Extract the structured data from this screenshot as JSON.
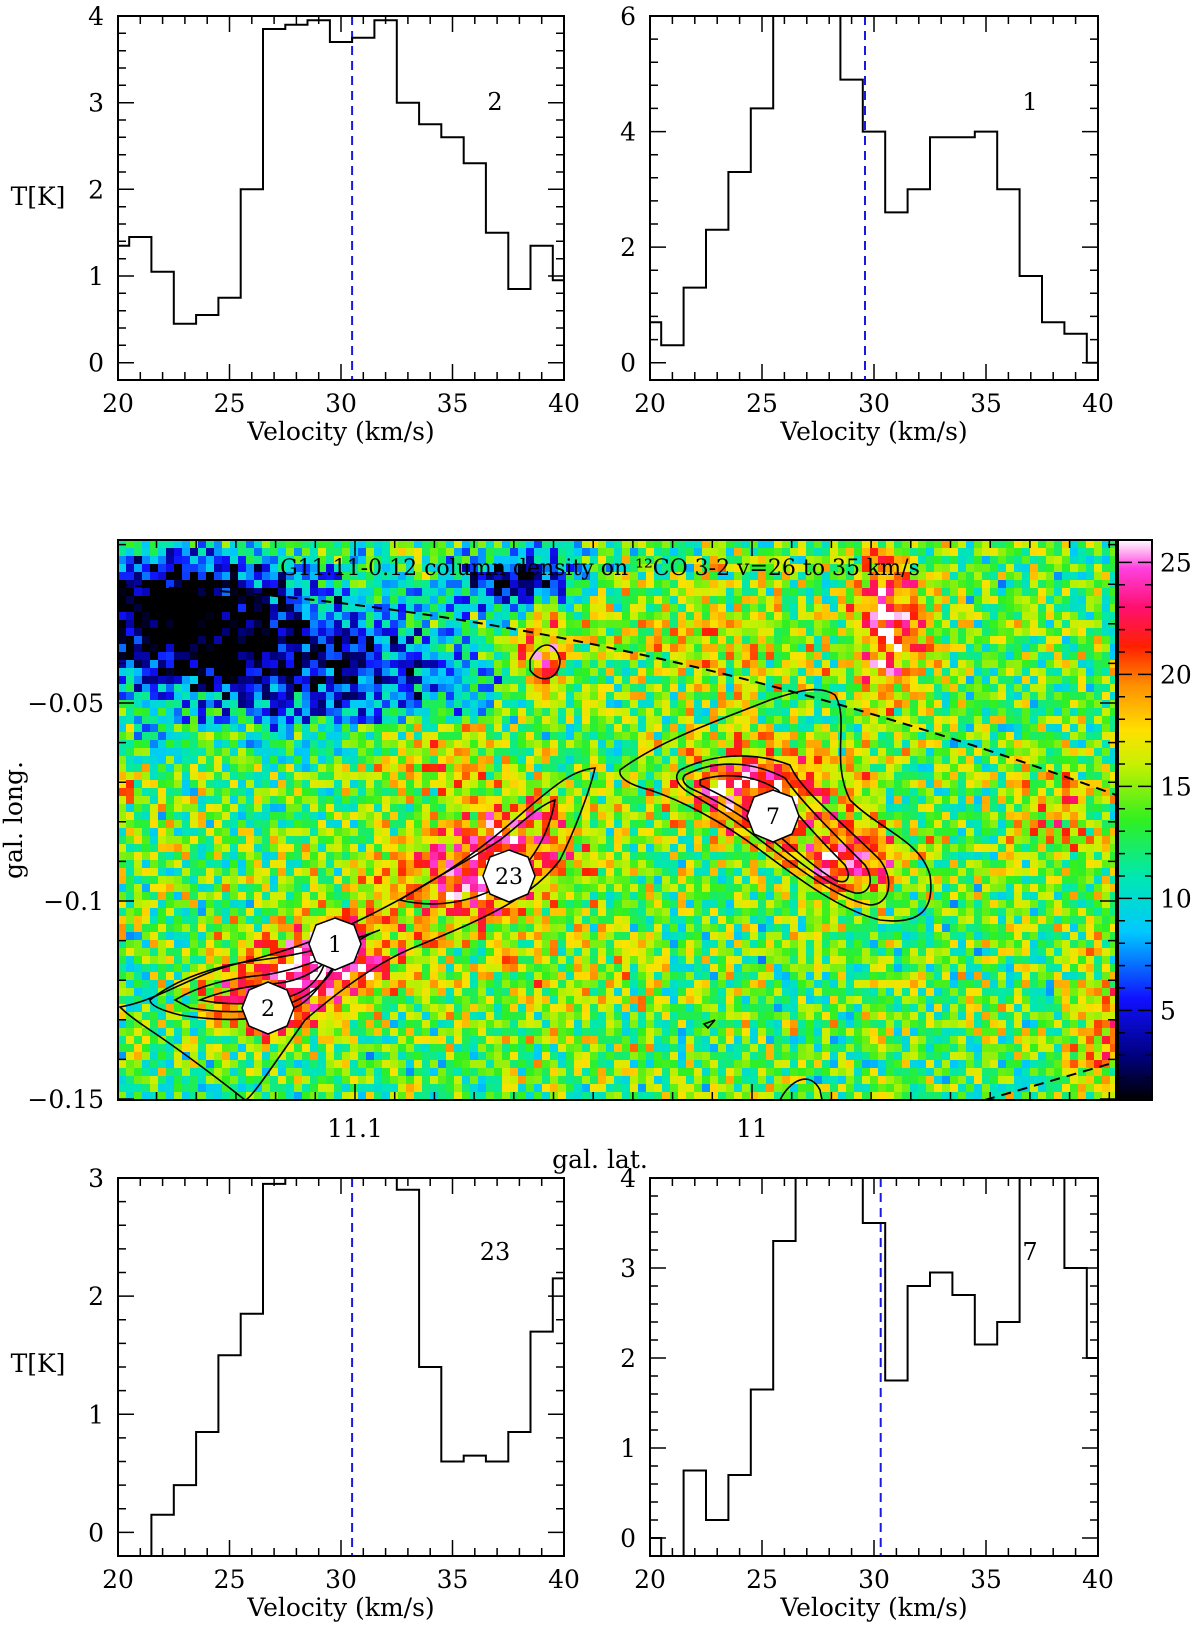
{
  "chart_data": [
    {
      "type": "line",
      "panel": "top-left",
      "label": "2",
      "xlabel": "Velocity (km/s)",
      "ylabel": "T[K]",
      "xlim": [
        20,
        40
      ],
      "ylim": [
        -0.2,
        4
      ],
      "xticks": [
        20,
        25,
        30,
        35,
        40
      ],
      "yticks": [
        0,
        1,
        2,
        3,
        4
      ],
      "vline": 30.5,
      "x": [
        20,
        20.5,
        21.5,
        22.5,
        23.5,
        24.5,
        25.5,
        26.5,
        27.5,
        28.5,
        29.5,
        30.5,
        31.5,
        32.5,
        33.5,
        34.5,
        35.5,
        36.5,
        37.5,
        38.5,
        39.5,
        40
      ],
      "y": [
        1.35,
        1.45,
        1.05,
        0.45,
        0.55,
        0.75,
        2.0,
        3.85,
        3.9,
        3.95,
        3.7,
        3.75,
        3.95,
        3.0,
        2.75,
        2.6,
        2.3,
        1.5,
        0.85,
        1.35,
        0.95,
        0.95
      ]
    },
    {
      "type": "line",
      "panel": "top-right",
      "label": "1",
      "xlabel": "Velocity (km/s)",
      "ylabel": "",
      "xlim": [
        20,
        40
      ],
      "ylim": [
        -0.3,
        6
      ],
      "xticks": [
        20,
        25,
        30,
        35,
        40
      ],
      "yticks": [
        0,
        2,
        4,
        6
      ],
      "vline": 29.6,
      "x": [
        20,
        20.5,
        21.5,
        22.5,
        23.5,
        24.5,
        25.5,
        26.5,
        27.5,
        28.5,
        29.5,
        30.5,
        31.5,
        32.5,
        33.5,
        34.5,
        35.5,
        36.5,
        37.5,
        38.5,
        39.5,
        40
      ],
      "y": [
        0.7,
        0.3,
        1.3,
        2.3,
        3.3,
        4.4,
        6.2,
        6.2,
        6.2,
        4.9,
        4.0,
        2.6,
        3.0,
        3.9,
        3.9,
        4.0,
        3.0,
        1.5,
        0.7,
        0.5,
        0.0,
        0.0
      ]
    },
    {
      "type": "heatmap",
      "panel": "middle",
      "title": "G11.11-0.12  column density on ¹²CO 3-2 v=26 to 35 km/s",
      "xlabel": "gal. lat.",
      "ylabel": "gal. long.",
      "xticks": [
        "11.1",
        "11"
      ],
      "yticks": [
        "−0.05",
        "−0.1",
        "−0.15"
      ],
      "colorbar_ticks": [
        5,
        10,
        15,
        20,
        25
      ],
      "colorbar_range": [
        1,
        26
      ],
      "markers": [
        "1",
        "2",
        "23",
        "7"
      ]
    },
    {
      "type": "line",
      "panel": "bottom-left",
      "label": "23",
      "xlabel": "Velocity (km/s)",
      "ylabel": "T[K]",
      "xlim": [
        20,
        40
      ],
      "ylim": [
        -0.2,
        3
      ],
      "xticks": [
        20,
        25,
        30,
        35,
        40
      ],
      "yticks": [
        0,
        1,
        2,
        3
      ],
      "vline": 30.5,
      "x": [
        20,
        21.5,
        22.5,
        23.5,
        24.5,
        25.5,
        26.5,
        27.5,
        28.5,
        29.5,
        30.5,
        31.5,
        32.5,
        33.5,
        34.5,
        35.5,
        36.5,
        37.5,
        38.5,
        39.5,
        40
      ],
      "y": [
        -0.3,
        0.15,
        0.4,
        0.85,
        1.5,
        1.85,
        2.95,
        3.0,
        3.1,
        3.1,
        3.0,
        3.0,
        2.9,
        1.4,
        0.6,
        0.65,
        0.6,
        0.85,
        1.7,
        2.15,
        2.15
      ]
    },
    {
      "type": "line",
      "panel": "bottom-right",
      "label": "7",
      "xlabel": "Velocity (km/s)",
      "ylabel": "",
      "xlim": [
        20,
        40
      ],
      "ylim": [
        -0.2,
        4
      ],
      "xticks": [
        20,
        25,
        30,
        35,
        40
      ],
      "yticks": [
        0,
        1,
        2,
        3,
        4
      ],
      "vline": 30.3,
      "x": [
        20,
        20.5,
        21.5,
        22.5,
        23.5,
        24.5,
        25.5,
        26.5,
        27.5,
        28.5,
        29.5,
        30.5,
        31.5,
        32.5,
        33.5,
        34.5,
        35.5,
        36.5,
        37.5,
        38.5,
        39.5,
        40
      ],
      "y": [
        0.0,
        -0.5,
        0.75,
        0.2,
        0.7,
        1.65,
        3.3,
        4.5,
        4.5,
        4.5,
        3.5,
        1.75,
        2.8,
        2.95,
        2.7,
        2.15,
        2.4,
        4.5,
        4.5,
        3.0,
        2.0,
        2.0
      ]
    }
  ]
}
